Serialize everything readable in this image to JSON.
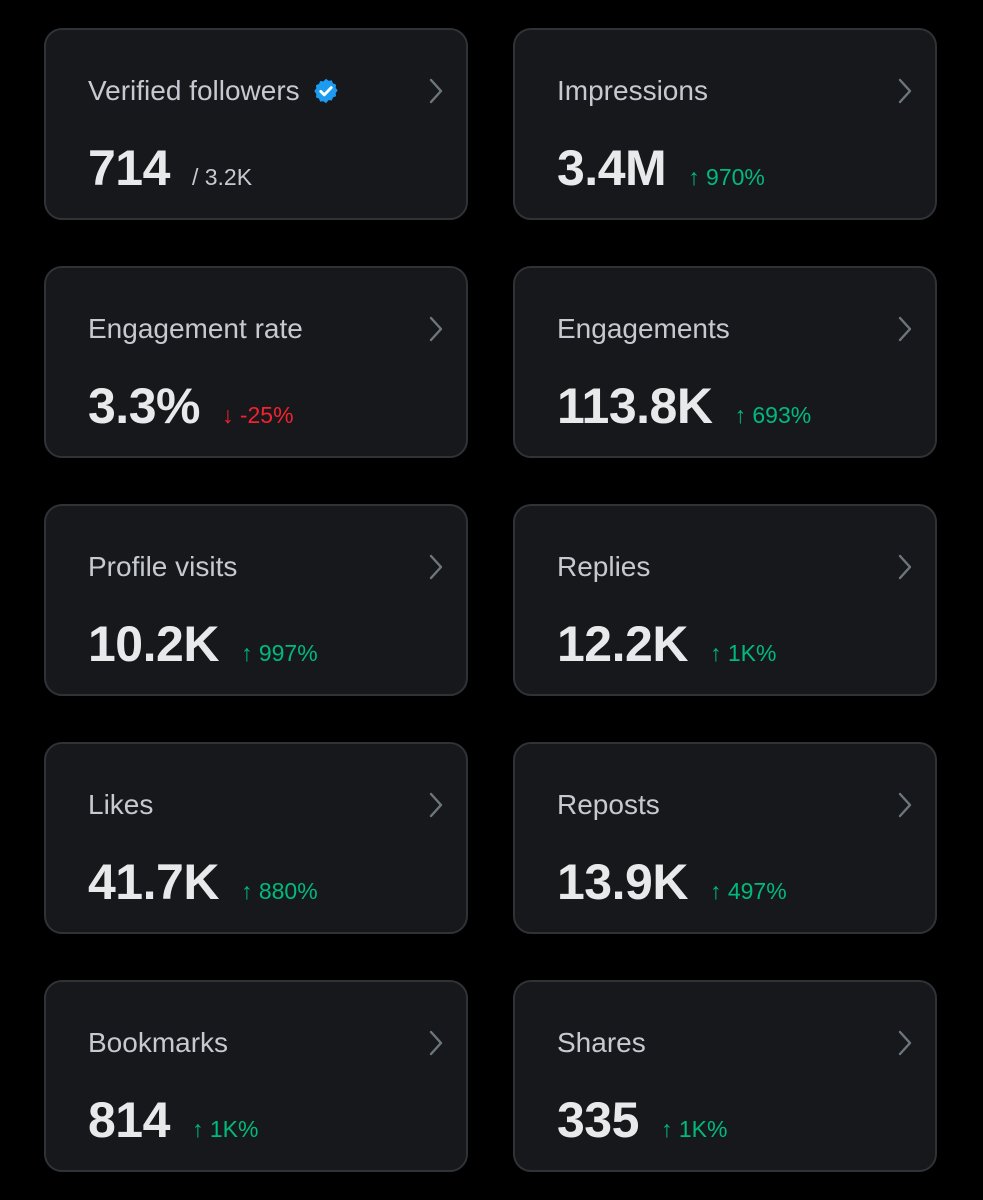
{
  "colors": {
    "background": "#000000",
    "card_background": "#16181c",
    "card_border": "#2f3336",
    "title_text": "#c6cad0",
    "value_text": "#e7e9ea",
    "positive": "#00ba7c",
    "negative": "#f4212e",
    "verified_badge": "#1d9bf0"
  },
  "cards": [
    {
      "title": "Verified followers",
      "value": "714",
      "total": "/ 3.2K",
      "icon": "verified-badge-icon"
    },
    {
      "title": "Impressions",
      "value": "3.4M",
      "change": "↑ 970%",
      "direction": "up"
    },
    {
      "title": "Engagement rate",
      "value": "3.3%",
      "change": "↓ -25%",
      "direction": "down"
    },
    {
      "title": "Engagements",
      "value": "113.8K",
      "change": "↑ 693%",
      "direction": "up"
    },
    {
      "title": "Profile visits",
      "value": "10.2K",
      "change": "↑ 997%",
      "direction": "up"
    },
    {
      "title": "Replies",
      "value": "12.2K",
      "change": "↑ 1K%",
      "direction": "up"
    },
    {
      "title": "Likes",
      "value": "41.7K",
      "change": "↑ 880%",
      "direction": "up"
    },
    {
      "title": "Reposts",
      "value": "13.9K",
      "change": "↑ 497%",
      "direction": "up"
    },
    {
      "title": "Bookmarks",
      "value": "814",
      "change": "↑ 1K%",
      "direction": "up"
    },
    {
      "title": "Shares",
      "value": "335",
      "change": "↑ 1K%",
      "direction": "up"
    }
  ]
}
